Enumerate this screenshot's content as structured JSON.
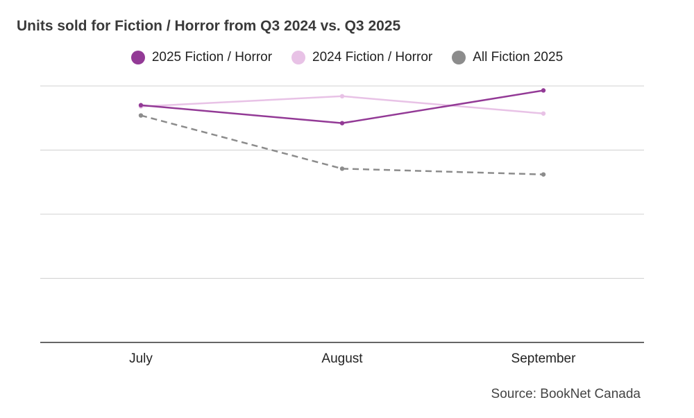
{
  "chart_data": {
    "type": "line",
    "title": "Units sold for Fiction / Horror from Q3 2024 vs. Q3 2025",
    "categories": [
      "July",
      "August",
      "September"
    ],
    "xlabel": "",
    "ylabel": "",
    "ylim": [
      0,
      400
    ],
    "grid": true,
    "legend_position": "top",
    "series": [
      {
        "name": "2025 Fiction / Horror",
        "values": [
          370,
          342,
          393
        ],
        "color": "#933a96",
        "dashed": false
      },
      {
        "name": "2024 Fiction / Horror",
        "values": [
          368,
          384,
          357
        ],
        "color": "#e8c2e6",
        "dashed": false
      },
      {
        "name": "All Fiction 2025",
        "values": [
          354,
          271,
          262
        ],
        "color": "#8c8c8c",
        "dashed": true
      }
    ]
  },
  "source": "Source: BookNet Canada"
}
